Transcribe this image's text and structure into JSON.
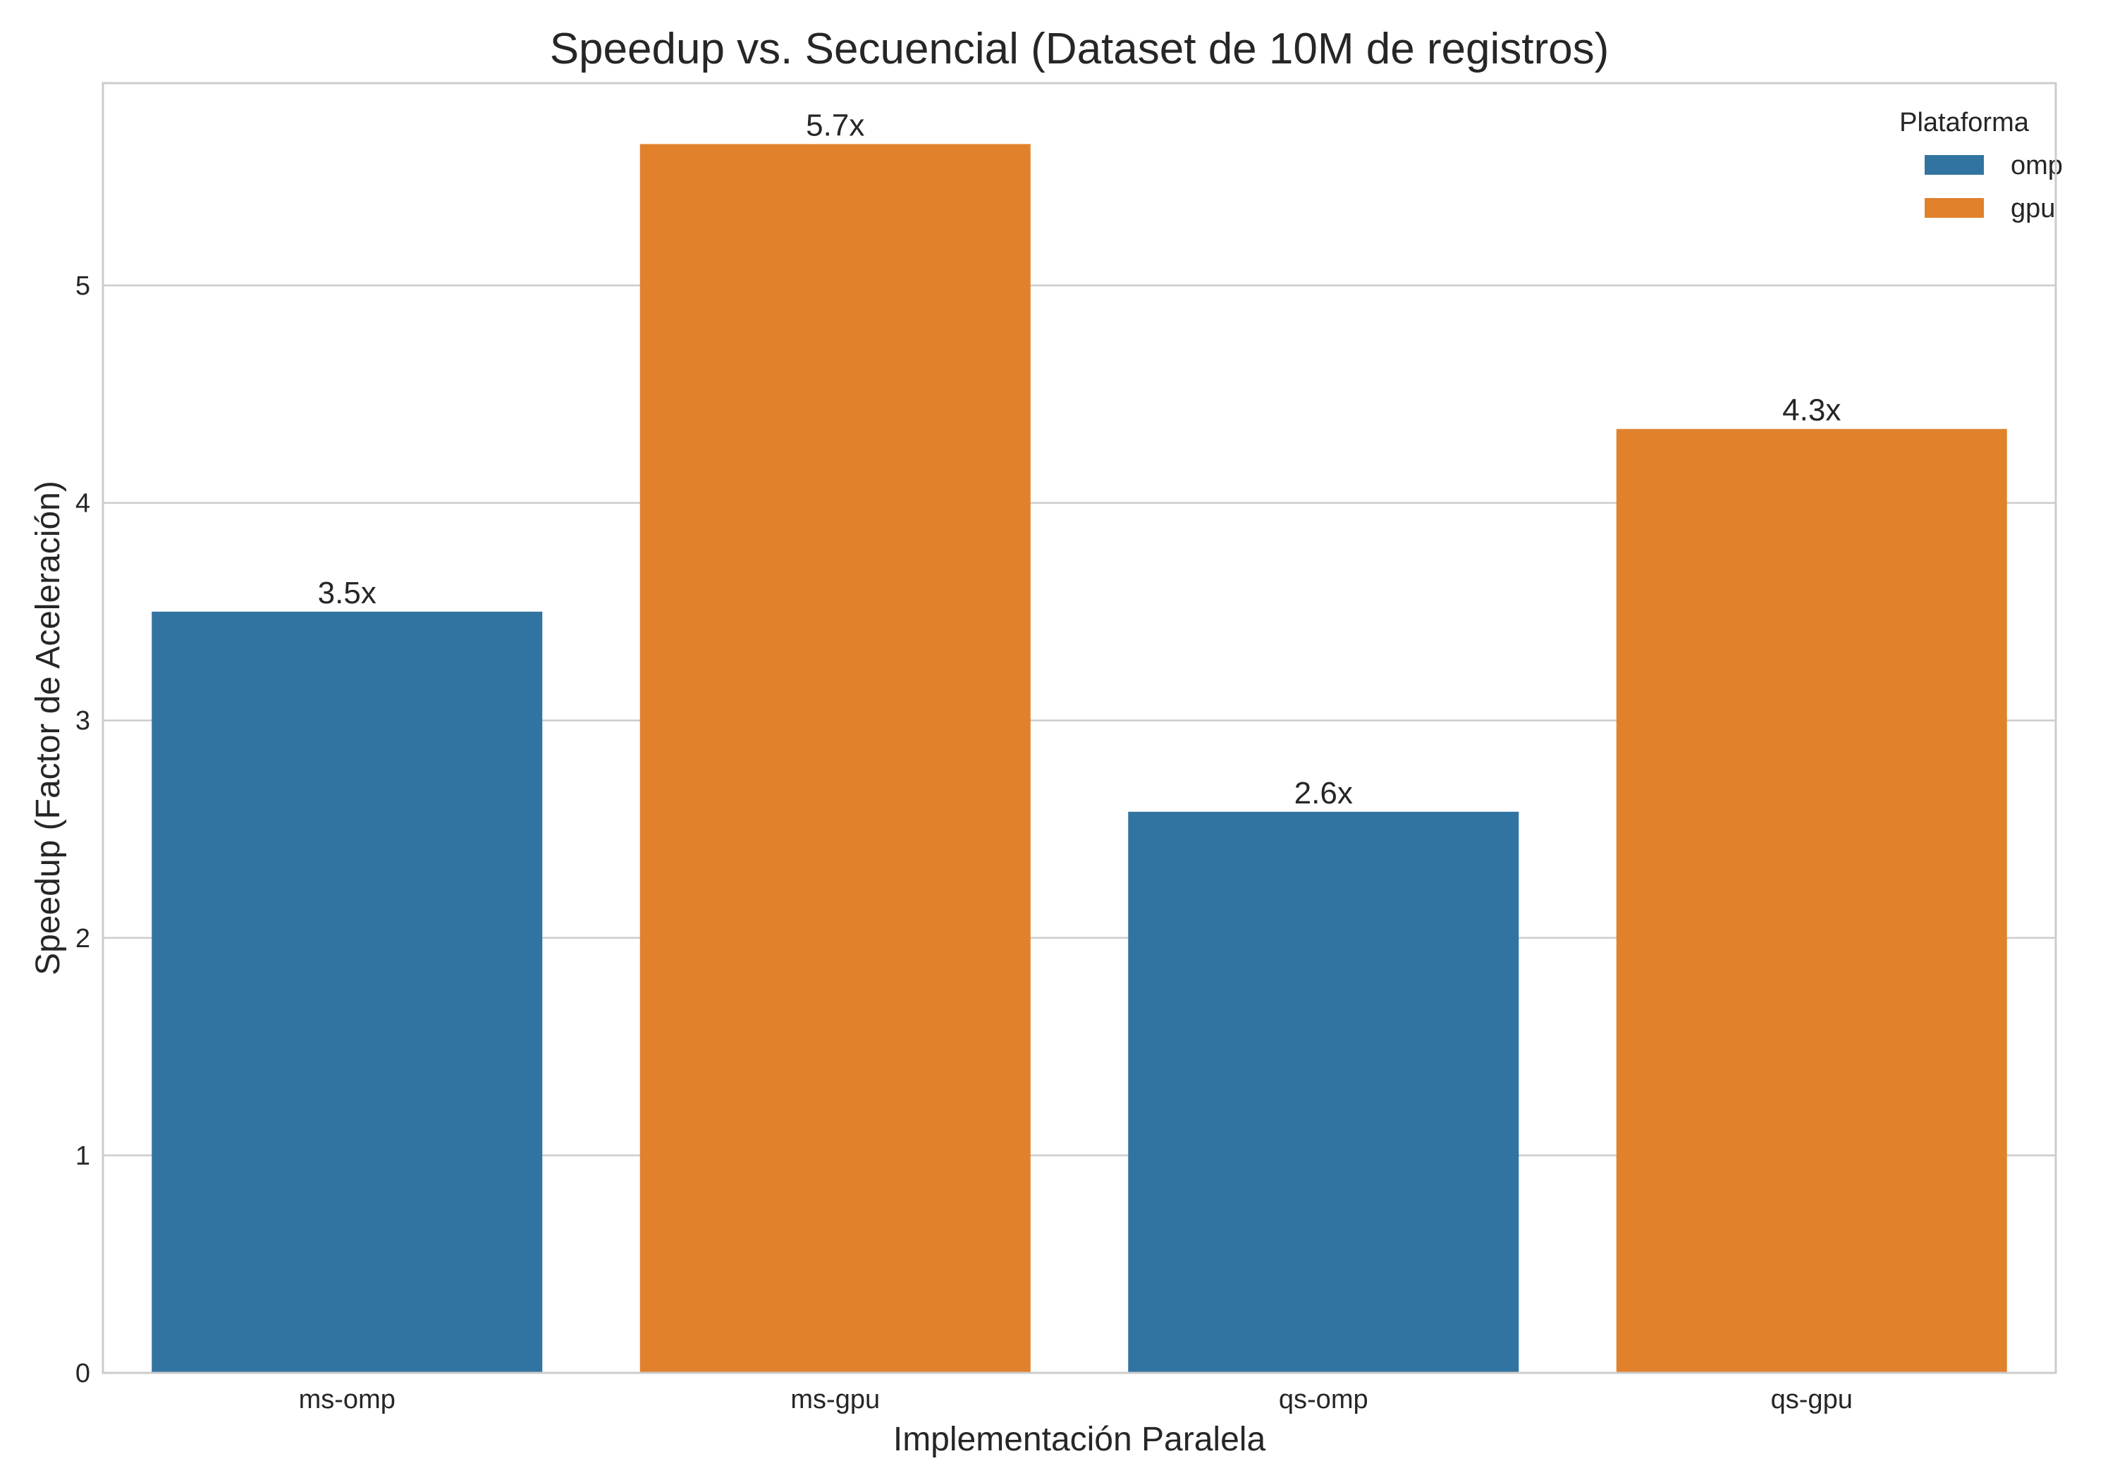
{
  "chart_data": {
    "type": "bar",
    "title": "Speedup vs. Secuencial (Dataset de 10M de registros)",
    "xlabel": "Implementación Paralela",
    "ylabel": "Speedup (Factor de Aceleración)",
    "categories": [
      "ms-omp",
      "ms-gpu",
      "qs-omp",
      "qs-gpu"
    ],
    "values": [
      3.5,
      5.65,
      2.58,
      4.34
    ],
    "value_labels": [
      "3.5x",
      "5.7x",
      "2.6x",
      "4.3x"
    ],
    "bar_platform": [
      "omp",
      "gpu",
      "omp",
      "gpu"
    ],
    "ylim": [
      0,
      5.93
    ],
    "yticks": [
      0,
      1,
      2,
      3,
      4,
      5
    ],
    "grid": "horizontal",
    "legend": {
      "title": "Plataforma",
      "placement": "top-right",
      "entries": [
        {
          "name": "omp",
          "color": "#3274a1"
        },
        {
          "name": "gpu",
          "color": "#e1812c"
        }
      ]
    },
    "colors": {
      "omp": "#3274a1",
      "gpu": "#e1812c",
      "grid": "#cccccc",
      "frame": "#cccccc"
    }
  }
}
